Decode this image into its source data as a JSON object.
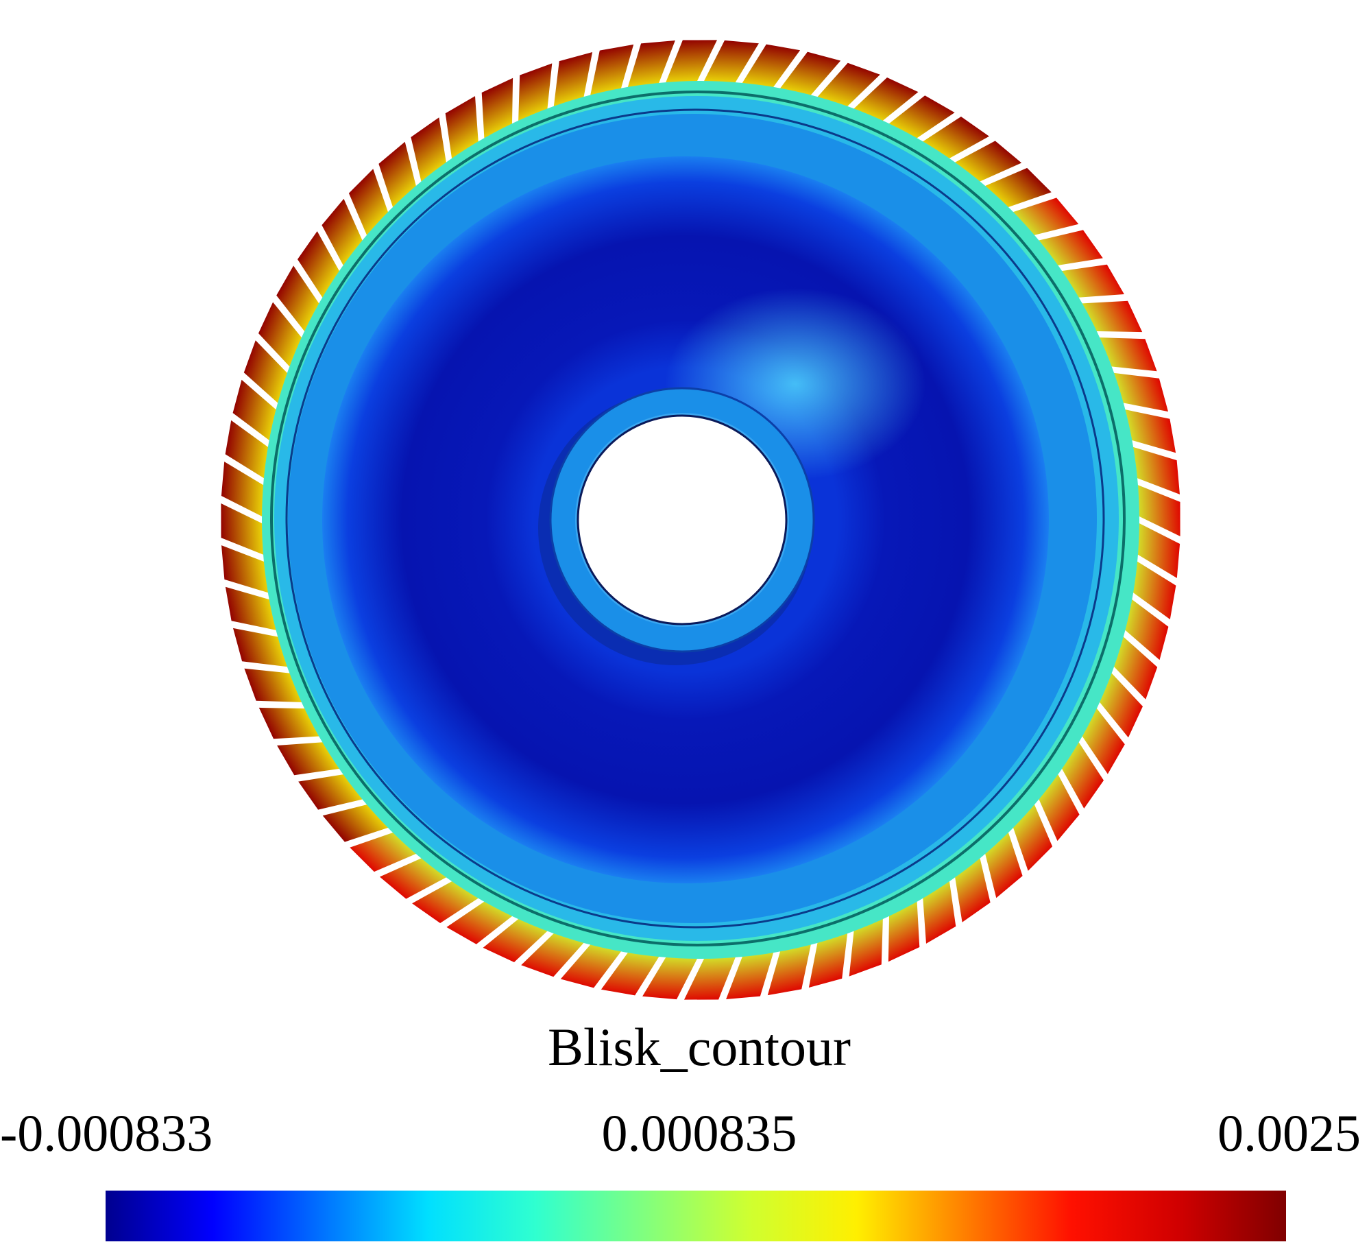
{
  "legend": {
    "title": "Blisk_contour",
    "min_label": "-0.000833",
    "mid_label": "0.000835",
    "max_label": "0.0025"
  },
  "colormap": [
    "#00008f",
    "#0000ff",
    "#0070ff",
    "#00dfff",
    "#2fffd0",
    "#7fff80",
    "#cfff30",
    "#ffef00",
    "#ff8000",
    "#ff1000",
    "#d00000",
    "#800000"
  ],
  "blisk": {
    "blade_count": 72,
    "colors": {
      "hub": "#1a8fe8",
      "disk_center": "#0a1bb0",
      "disk_light": "#3fc6ff",
      "rim": "#46e6c6"
    }
  }
}
